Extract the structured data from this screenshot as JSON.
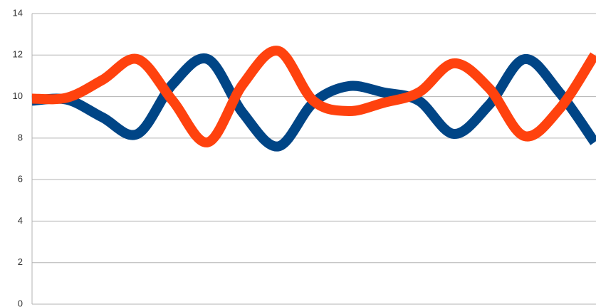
{
  "chart_data": {
    "type": "line",
    "categories": [
      null,
      null,
      null,
      null,
      null,
      null,
      null,
      null,
      null,
      null,
      null,
      null,
      null,
      null,
      null,
      null,
      null
    ],
    "series": [
      {
        "color": "#004586",
        "values": [
          9.8,
          9.85,
          9.0,
          8.2,
          10.6,
          11.8,
          9.2,
          7.6,
          9.7,
          10.5,
          10.2,
          9.8,
          8.2,
          9.6,
          11.8,
          10.2,
          7.8
        ]
      },
      {
        "color": "#ff420e",
        "values": [
          9.9,
          9.95,
          10.8,
          11.8,
          9.8,
          7.8,
          10.6,
          12.2,
          9.8,
          9.3,
          9.7,
          10.2,
          11.6,
          10.4,
          8.1,
          9.4,
          12.0
        ]
      }
    ],
    "ylim": [
      0,
      14
    ],
    "yticks": [
      0,
      2,
      4,
      6,
      8,
      10,
      12,
      14
    ],
    "grid": true
  }
}
